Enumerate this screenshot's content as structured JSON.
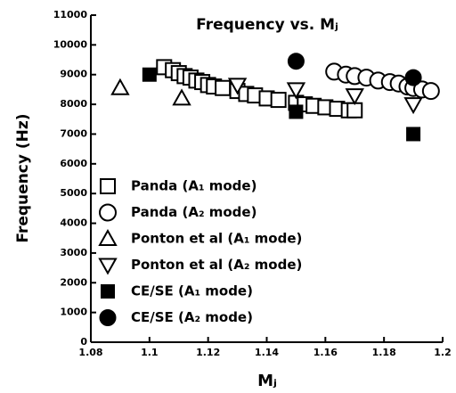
{
  "chart_data": {
    "type": "scatter",
    "title": "Frequency vs. Mⱼ",
    "x_label": "Mⱼ",
    "y_label": "Frequency (Hz)",
    "xlim": [
      1.08,
      1.2
    ],
    "xticks": [
      1.08,
      1.1,
      1.12,
      1.14,
      1.16,
      1.18,
      1.2
    ],
    "ylim": [
      0,
      11000
    ],
    "yticks": [
      0,
      1000,
      2000,
      3000,
      4000,
      5000,
      6000,
      7000,
      8000,
      9000,
      10000,
      11000
    ],
    "legend": "left",
    "series": [
      {
        "name": "Panda (A₁ mode)",
        "marker": "square",
        "filled": false,
        "color": "#000000",
        "x": [
          1.105,
          1.108,
          1.11,
          1.112,
          1.114,
          1.116,
          1.118,
          1.12,
          1.122,
          1.125,
          1.13,
          1.133,
          1.136,
          1.14,
          1.144,
          1.15,
          1.153,
          1.156,
          1.16,
          1.164,
          1.168,
          1.17
        ],
        "y": [
          9250,
          9150,
          9050,
          8950,
          8900,
          8800,
          8750,
          8650,
          8600,
          8550,
          8450,
          8350,
          8300,
          8200,
          8150,
          8050,
          8000,
          7950,
          7900,
          7850,
          7800,
          7800
        ]
      },
      {
        "name": "Panda (A₂ mode)",
        "marker": "circle",
        "filled": false,
        "color": "#000000",
        "x": [
          1.163,
          1.167,
          1.17,
          1.174,
          1.178,
          1.182,
          1.185,
          1.188,
          1.19,
          1.193,
          1.196
        ],
        "y": [
          9100,
          9000,
          8950,
          8900,
          8800,
          8750,
          8700,
          8600,
          8550,
          8500,
          8450
        ]
      },
      {
        "name": "Ponton et al (A₁ mode)",
        "marker": "triangle-up",
        "filled": false,
        "color": "#000000",
        "x": [
          1.09,
          1.111
        ],
        "y": [
          8550,
          8200
        ]
      },
      {
        "name": "Ponton et al (A₂ mode)",
        "marker": "triangle-down",
        "filled": false,
        "color": "#000000",
        "x": [
          1.13,
          1.15,
          1.17,
          1.19
        ],
        "y": [
          8650,
          8500,
          8300,
          8000
        ]
      },
      {
        "name": "CE/SE (A₁ mode)",
        "marker": "square",
        "filled": true,
        "color": "#000000",
        "x": [
          1.1,
          1.15,
          1.19
        ],
        "y": [
          9000,
          7750,
          7000
        ]
      },
      {
        "name": "CE/SE (A₂ mode)",
        "marker": "circle",
        "filled": true,
        "color": "#000000",
        "x": [
          1.15,
          1.19
        ],
        "y": [
          9450,
          8900
        ]
      }
    ]
  }
}
